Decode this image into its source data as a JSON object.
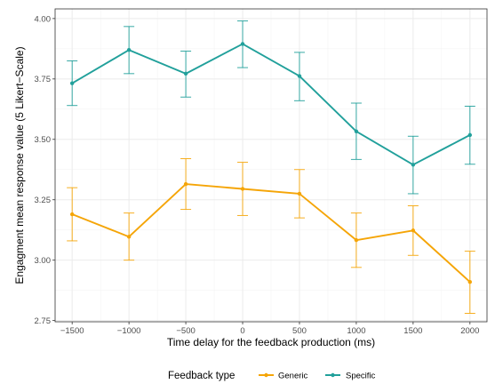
{
  "chart_data": {
    "type": "line",
    "xlabel": "Time delay for the feedback production (ms)",
    "ylabel": "Engagment mean response value (5 Likert−Scale)",
    "x": [
      -1500,
      -1000,
      -500,
      0,
      500,
      1000,
      1500,
      2000
    ],
    "x_tick_labels": [
      "−1500",
      "−1000",
      "−500",
      "0",
      "500",
      "1000",
      "1500",
      "2000"
    ],
    "y_ticks": [
      2.75,
      3.0,
      3.25,
      3.5,
      3.75,
      4.0
    ],
    "y_tick_labels": [
      "2.75",
      "3.00",
      "3.25",
      "3.50",
      "3.75",
      "4.00"
    ],
    "xlim": [
      -1650,
      2150
    ],
    "ylim": [
      2.745,
      4.04
    ],
    "grid": true,
    "legend_position": "bottom",
    "legend_title": "Feedback type",
    "series": [
      {
        "name": "Generic",
        "color": "#F5A507",
        "values": [
          3.19,
          3.097,
          3.315,
          3.295,
          3.275,
          3.083,
          3.123,
          2.91
        ],
        "err_low": [
          3.08,
          3.0,
          3.21,
          3.185,
          3.175,
          2.97,
          3.02,
          2.78
        ],
        "err_high": [
          3.3,
          3.195,
          3.42,
          3.405,
          3.375,
          3.195,
          3.225,
          3.037
        ]
      },
      {
        "name": "Specific",
        "color": "#21A09B",
        "values": [
          3.732,
          3.87,
          3.772,
          3.895,
          3.762,
          3.533,
          3.395,
          3.518
        ],
        "err_low": [
          3.64,
          3.772,
          3.675,
          3.797,
          3.66,
          3.417,
          3.275,
          3.397
        ],
        "err_high": [
          3.825,
          3.967,
          3.865,
          3.99,
          3.86,
          3.65,
          3.513,
          3.637
        ]
      }
    ]
  }
}
